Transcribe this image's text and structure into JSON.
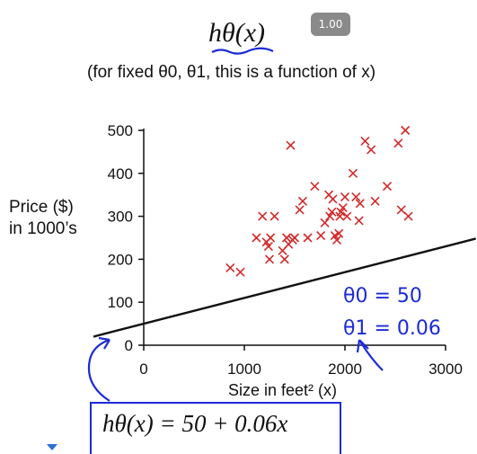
{
  "header": {
    "title": "hθ(x)",
    "subtitle": "(for fixed θ0, θ1, this is a function of x)",
    "speed": "1.00"
  },
  "axes": {
    "ylabel_line1": "Price ($)",
    "ylabel_line2": "in 1000’s",
    "xlabel": "Size in feet² (x)"
  },
  "annotations": {
    "theta0": "θ0 = 50",
    "theta1": "θ1 = 0.06",
    "formula": "hθ(x) = 50 + 0.06x"
  },
  "colors": {
    "points": "#d12a2a",
    "line": "#111111",
    "ink": "#1c2bd6"
  },
  "chart_data": {
    "type": "scatter",
    "xlabel": "Size in feet² (x)",
    "ylabel": "Price ($) in 1000’s",
    "xlim": [
      0,
      3000
    ],
    "ylim": [
      0,
      500
    ],
    "xticks": [
      0,
      1000,
      2000,
      3000
    ],
    "yticks": [
      0,
      100,
      200,
      300,
      400,
      500
    ],
    "grid": false,
    "series": [
      {
        "marker": "x",
        "color": "#d12a2a",
        "x": [
          860,
          960,
          1120,
          1180,
          1220,
          1240,
          1250,
          1260,
          1300,
          1380,
          1400,
          1420,
          1440,
          1460,
          1480,
          1500,
          1550,
          1580,
          1630,
          1700,
          1760,
          1800,
          1840,
          1850,
          1870,
          1880,
          1900,
          1920,
          1940,
          1950,
          1960,
          1980,
          2000,
          2020,
          2080,
          2110,
          2140,
          2150,
          2200,
          2260,
          2300,
          2420,
          2530,
          2560,
          2600,
          2630
        ],
        "y": [
          180,
          170,
          250,
          300,
          240,
          230,
          200,
          250,
          300,
          220,
          200,
          250,
          235,
          465,
          245,
          250,
          315,
          335,
          250,
          370,
          255,
          285,
          350,
          300,
          310,
          340,
          255,
          245,
          260,
          300,
          310,
          320,
          345,
          300,
          400,
          345,
          290,
          330,
          475,
          455,
          335,
          370,
          470,
          315,
          500,
          300
        ]
      }
    ],
    "lines": [
      {
        "intercept": 50,
        "slope": 0.06,
        "x_range": [
          -500,
          3300
        ],
        "color": "#111111"
      }
    ]
  }
}
